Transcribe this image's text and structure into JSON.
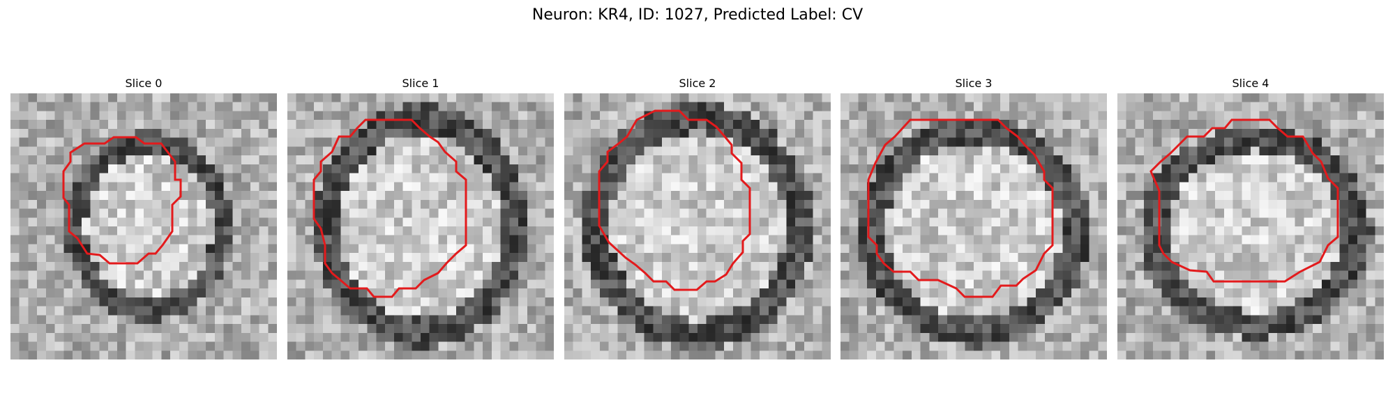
{
  "figure": {
    "title": "Neuron: KR4, ID: 1027, Predicted Label: CV"
  },
  "panels": [
    {
      "title": "Slice 0",
      "contour_color": "#e31a1c"
    },
    {
      "title": "Slice 1",
      "contour_color": "#e31a1c"
    },
    {
      "title": "Slice 2",
      "contour_color": "#e31a1c"
    },
    {
      "title": "Slice 3",
      "contour_color": "#e31a1c"
    },
    {
      "title": "Slice 4",
      "contour_color": "#e31a1c"
    }
  ]
}
